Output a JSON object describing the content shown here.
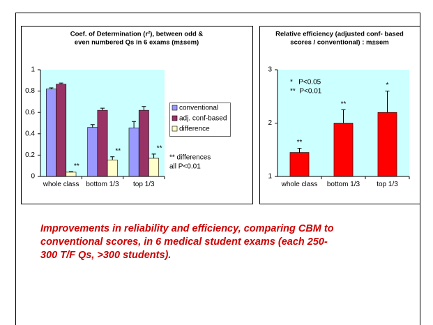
{
  "chart_data": [
    {
      "type": "bar",
      "title": [
        "Coef. of Determination (r²), between odd &",
        "even numbered Qs in 6 exams (m±sem)"
      ],
      "categories": [
        "whole class",
        "bottom 1/3",
        "top 1/3"
      ],
      "series": [
        {
          "name": "conventional",
          "color": "#9999ff",
          "values": [
            0.82,
            0.46,
            0.455
          ],
          "errors": [
            0.01,
            0.025,
            0.06
          ]
        },
        {
          "name": "adj. conf-based",
          "color": "#993366",
          "values": [
            0.865,
            0.62,
            0.62
          ],
          "errors": [
            0.01,
            0.02,
            0.035
          ]
        },
        {
          "name": "difference",
          "color": "#ffffcc",
          "values": [
            0.04,
            0.155,
            0.17
          ],
          "errors": [
            0.005,
            0.03,
            0.04
          ],
          "annotations": [
            "**",
            "**",
            "**"
          ]
        }
      ],
      "ylim": [
        0,
        1
      ],
      "yticks": [
        0,
        0.2,
        0.4,
        0.6,
        0.8,
        1
      ],
      "notes": [
        "** differences",
        "all P<0.01"
      ]
    },
    {
      "type": "bar",
      "title": [
        "Relative efficiency (adjusted conf- based",
        "scores / conventional) : m±sem"
      ],
      "categories": [
        "whole class",
        "bottom 1/3",
        "top 1/3"
      ],
      "series": [
        {
          "name": "relative efficiency",
          "color": "#ff0000",
          "values": [
            1.45,
            2.0,
            2.2
          ],
          "errors": [
            0.08,
            0.25,
            0.4
          ],
          "annotations": [
            "**",
            "**",
            "*"
          ]
        }
      ],
      "ylim": [
        1,
        3
      ],
      "yticks": [
        1,
        2,
        3
      ],
      "notes": [
        "*   P<0.05",
        "**  P<0.01"
      ]
    }
  ],
  "caption": [
    "Improvements in reliability and efficiency, comparing CBM to",
    "conventional scores, in 6 medical student exams (each 250-",
    "300 T/F Qs, >300 students)."
  ]
}
